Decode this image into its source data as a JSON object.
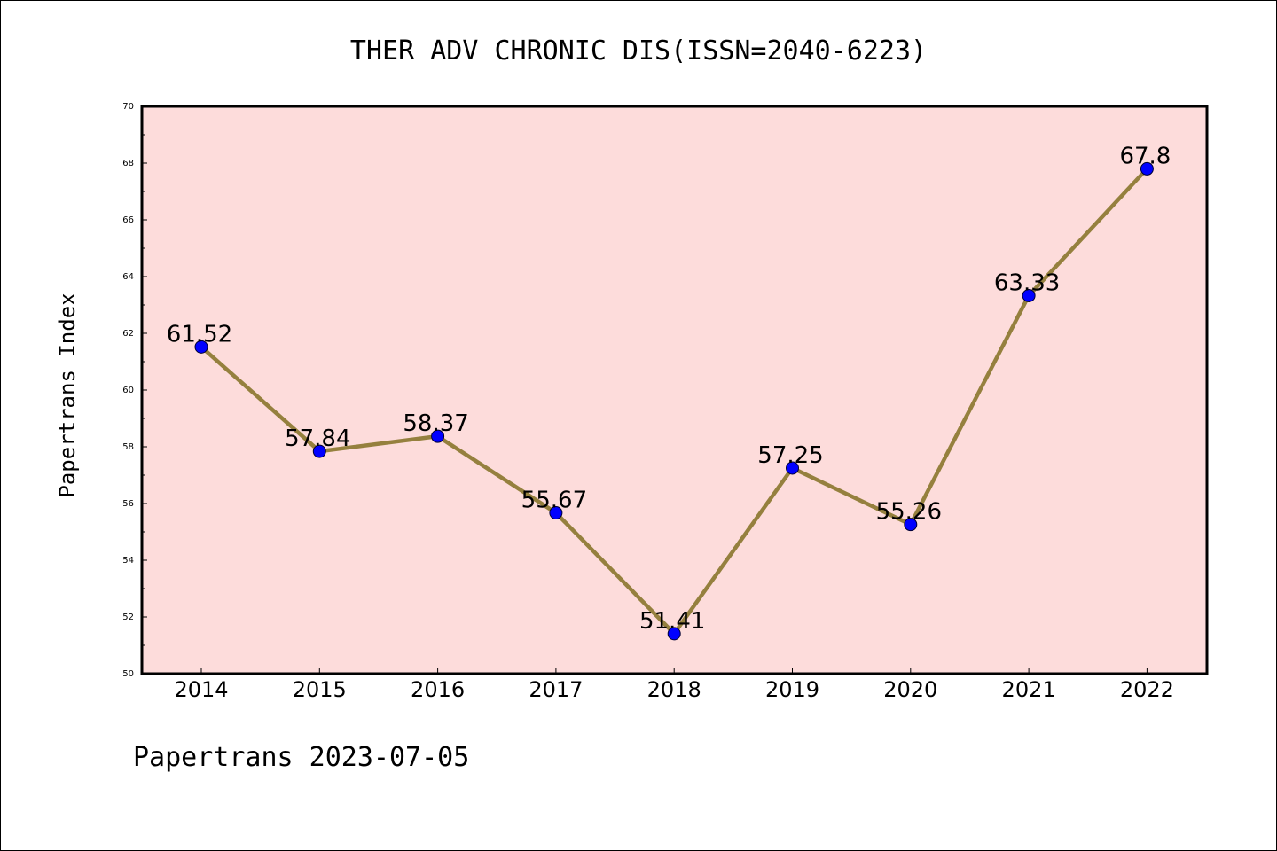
{
  "title": "THER ADV CHRONIC DIS(ISSN=2040-6223)",
  "footer": "Papertrans 2023-07-05",
  "colors": {
    "plot_background": "#fddcdb",
    "line": "#95803e",
    "marker": "#0000ff",
    "axis": "#000000"
  },
  "chart_data": {
    "type": "line",
    "title": "THER ADV CHRONIC DIS(ISSN=2040-6223)",
    "xlabel": "",
    "ylabel": "Papertrans Index",
    "categories": [
      "2014",
      "2015",
      "2016",
      "2017",
      "2018",
      "2019",
      "2020",
      "2021",
      "2022"
    ],
    "values": [
      61.52,
      57.84,
      58.37,
      55.67,
      51.41,
      57.25,
      55.26,
      63.33,
      67.8
    ],
    "data_labels": [
      "61.52",
      "57.84",
      "58.37",
      "55.67",
      "51.41",
      "57.25",
      "55.26",
      "63.33",
      "67.8"
    ],
    "ylim": [
      50,
      70
    ],
    "yticks": [
      "50",
      "52",
      "54",
      "56",
      "58",
      "60",
      "62",
      "64",
      "66",
      "68",
      "70"
    ],
    "grid": false,
    "legend": "none"
  }
}
